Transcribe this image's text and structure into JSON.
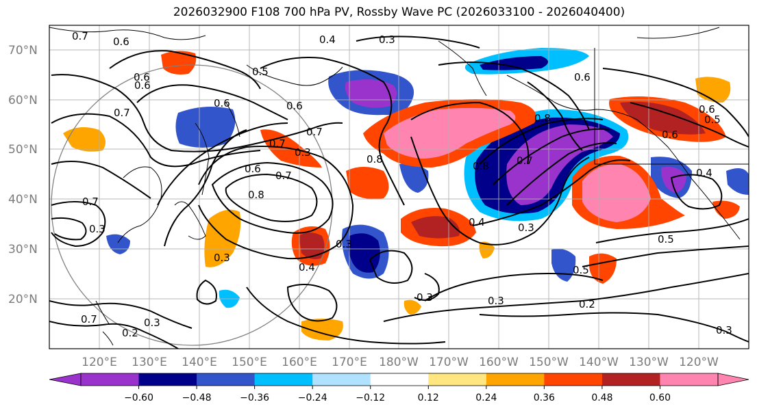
{
  "title": "2026032900 F108 700 hPa PV, Rossby Wave PC (2026033100 - 2026040400)",
  "map": {
    "lat_labels": [
      "70°N",
      "60°N",
      "50°N",
      "40°N",
      "30°N",
      "20°N"
    ],
    "lon_labels": [
      "120°E",
      "130°E",
      "140°E",
      "150°E",
      "160°E",
      "170°E",
      "180°W",
      "170°W",
      "160°W",
      "150°W",
      "140°W",
      "130°W",
      "120°W"
    ],
    "contour_labels": [
      "0.7",
      "0.6",
      "0.4",
      "0.3",
      "0.5",
      "0.6",
      "0.7",
      "0.6",
      "0.6",
      "0.7",
      "0.7",
      "0.6",
      "0.7",
      "0.8",
      "0.8",
      "0.7",
      "0.8",
      "0.6",
      "0.8",
      "0.7",
      "0.3",
      "0.3",
      "0.4",
      "0.3",
      "0.4",
      "0.5",
      "0.3",
      "0.3",
      "0.2",
      "0.7",
      "0.3",
      "0.2",
      "0.6",
      "0.5",
      "0.6",
      "0.4",
      "0.5",
      "0.3",
      "0.3",
      "0.6",
      "0.3"
    ]
  },
  "colorbar": {
    "ticks": [
      "−0.60",
      "−0.48",
      "−0.36",
      "−0.24",
      "−0.12",
      "0.12",
      "0.24",
      "0.36",
      "0.48",
      "0.60"
    ],
    "colors": [
      "#9933cc",
      "#00008b",
      "#3355cc",
      "#00bfff",
      "#b0e2ff",
      "#ffffff",
      "#ffe680",
      "#ffa500",
      "#ff4500",
      "#b22222",
      "#ff85b0"
    ]
  }
}
